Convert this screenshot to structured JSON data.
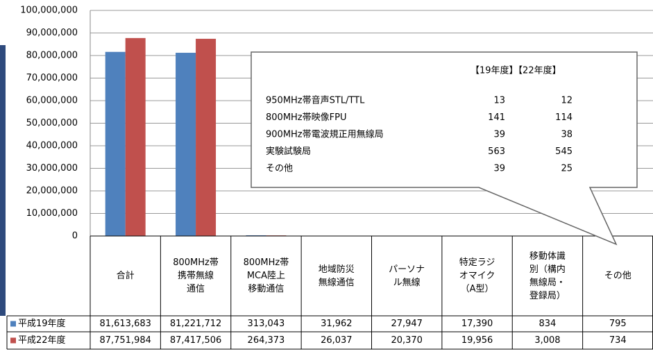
{
  "chart_data": {
    "type": "bar",
    "categories": [
      "合計",
      "800MHz帯\n携帯無線\n通信",
      "800MHz帯\nMCA陸上\n移動通信",
      "地域防災\n無線通信",
      "パーソナ\nル無線",
      "特定ラジ\nオマイク\n（A型）",
      "移動体識\n別（構内\n無線局・\n登録局）",
      "その他"
    ],
    "series": [
      {
        "name": "平成19年度",
        "color": "#4f81bd",
        "values": [
          81613683,
          81221712,
          313043,
          31962,
          27947,
          17390,
          834,
          795
        ],
        "value_labels": [
          "81,613,683",
          "81,221,712",
          "313,043",
          "31,962",
          "27,947",
          "17,390",
          "834",
          "795"
        ]
      },
      {
        "name": "平成22年度",
        "color": "#c0504d",
        "values": [
          87751984,
          87417506,
          264373,
          26037,
          20370,
          19956,
          3008,
          734
        ],
        "value_labels": [
          "87,751,984",
          "87,417,506",
          "264,373",
          "26,037",
          "20,370",
          "19,956",
          "3,008",
          "734"
        ]
      }
    ],
    "ylim": [
      0,
      100000000
    ],
    "yticks": [
      0,
      {
        "value": 10000000,
        "label": "10,000,000"
      },
      {
        "value": 20000000,
        "label": "20,000,000"
      },
      {
        "value": 30000000,
        "label": "30,000,000"
      },
      {
        "value": 40000000,
        "label": "40,000,000"
      },
      {
        "value": 50000000,
        "label": "50,000,000"
      },
      {
        "value": 60000000,
        "label": "60,000,000"
      },
      {
        "value": 70000000,
        "label": "70,000,000"
      },
      {
        "value": 80000000,
        "label": "80,000,000"
      },
      {
        "value": 90000000,
        "label": "90,000,000"
      },
      {
        "value": 100000000,
        "label": "100,000,000"
      }
    ],
    "grid": true,
    "callout": {
      "header": "【19年度】【22年度】",
      "rows": [
        [
          "950MHz帯音声STL/TTL",
          13,
          12
        ],
        [
          "800MHz帯映像FPU",
          141,
          114
        ],
        [
          "900MHz帯電波規正用無線局",
          39,
          38
        ],
        [
          "実験試験局",
          563,
          545
        ],
        [
          "その他",
          39,
          25
        ]
      ]
    }
  }
}
